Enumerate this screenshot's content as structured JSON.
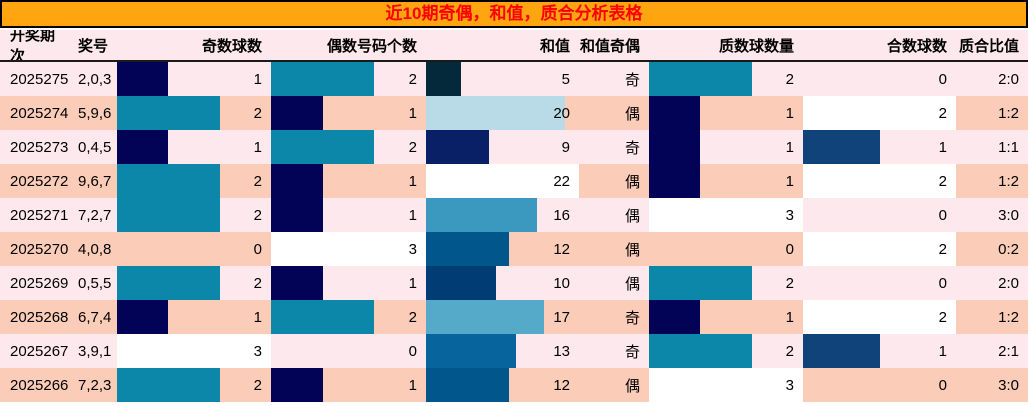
{
  "title": "近10期奇偶，和值，质合分析表格",
  "colors": {
    "title_bg": "#ffa510",
    "title_fg": "#fe0000",
    "row_light": "#fde9ed",
    "row_dark": "#fbccb8",
    "border": "#000000",
    "header_border": "#1a1a1a",
    "text": "#000000",
    "bar_navy": "#020257",
    "bar_teal": "#0d87a9",
    "bar_white": "#ffffff"
  },
  "chart_data": {
    "type": "table",
    "title": "近10期奇偶，和值，质合分析表格",
    "legend_note": "cells contain proportional data bars; count columns scale to max 3, sum column to max 22, composite column to max 2",
    "columns": [
      {
        "key": "period",
        "label": "开奖期次"
      },
      {
        "key": "numbers",
        "label": "奖号"
      },
      {
        "key": "odd",
        "label": "奇数球数"
      },
      {
        "key": "even",
        "label": "偶数号码个数"
      },
      {
        "key": "sum",
        "label": "和值"
      },
      {
        "key": "parity",
        "label": "和值奇偶"
      },
      {
        "key": "prime",
        "label": "质数球数量"
      },
      {
        "key": "composite",
        "label": "合数球数"
      },
      {
        "key": "ratio",
        "label": "质合比值"
      }
    ],
    "rows": [
      {
        "period": "2025275",
        "numbers": "2,0,3",
        "odd": {
          "value": 1,
          "bar": {
            "frac": 0.333,
            "color": "#020257"
          }
        },
        "even": {
          "value": 2,
          "bar": {
            "frac": 0.667,
            "color": "#0d87a9"
          }
        },
        "sum": {
          "value": 5,
          "bar": {
            "frac": 0.227,
            "color": "#04293a"
          }
        },
        "parity": "奇",
        "prime": {
          "value": 2,
          "bar": {
            "frac": 0.667,
            "color": "#0d87a9"
          }
        },
        "composite": {
          "value": 0,
          "bar": {
            "frac": 0,
            "color": null
          }
        },
        "ratio": "2:0"
      },
      {
        "period": "2025274",
        "numbers": "5,9,6",
        "odd": {
          "value": 2,
          "bar": {
            "frac": 0.667,
            "color": "#0d87a9"
          }
        },
        "even": {
          "value": 1,
          "bar": {
            "frac": 0.333,
            "color": "#020257"
          }
        },
        "sum": {
          "value": 20,
          "bar": {
            "frac": 0.909,
            "color": "#b9dbe7"
          }
        },
        "parity": "偶",
        "prime": {
          "value": 1,
          "bar": {
            "frac": 0.333,
            "color": "#020257"
          }
        },
        "composite": {
          "value": 2,
          "bar": {
            "frac": 1,
            "color": "#ffffff"
          }
        },
        "ratio": "1:2"
      },
      {
        "period": "2025273",
        "numbers": "0,4,5",
        "odd": {
          "value": 1,
          "bar": {
            "frac": 0.333,
            "color": "#020257"
          }
        },
        "even": {
          "value": 2,
          "bar": {
            "frac": 0.667,
            "color": "#0d87a9"
          }
        },
        "sum": {
          "value": 9,
          "bar": {
            "frac": 0.409,
            "color": "#0a2066"
          }
        },
        "parity": "奇",
        "prime": {
          "value": 1,
          "bar": {
            "frac": 0.333,
            "color": "#020257"
          }
        },
        "composite": {
          "value": 1,
          "bar": {
            "frac": 0.5,
            "color": "#11437b"
          }
        },
        "ratio": "1:1"
      },
      {
        "period": "2025272",
        "numbers": "9,6,7",
        "odd": {
          "value": 2,
          "bar": {
            "frac": 0.667,
            "color": "#0d87a9"
          }
        },
        "even": {
          "value": 1,
          "bar": {
            "frac": 0.333,
            "color": "#020257"
          }
        },
        "sum": {
          "value": 22,
          "bar": {
            "frac": 1,
            "color": "#ffffff"
          }
        },
        "parity": "偶",
        "prime": {
          "value": 1,
          "bar": {
            "frac": 0.333,
            "color": "#020257"
          }
        },
        "composite": {
          "value": 2,
          "bar": {
            "frac": 1,
            "color": "#ffffff"
          }
        },
        "ratio": "1:2"
      },
      {
        "period": "2025271",
        "numbers": "7,2,7",
        "odd": {
          "value": 2,
          "bar": {
            "frac": 0.667,
            "color": "#0d87a9"
          }
        },
        "even": {
          "value": 1,
          "bar": {
            "frac": 0.333,
            "color": "#020257"
          }
        },
        "sum": {
          "value": 16,
          "bar": {
            "frac": 0.727,
            "color": "#3b99c0"
          }
        },
        "parity": "偶",
        "prime": {
          "value": 3,
          "bar": {
            "frac": 1,
            "color": "#ffffff"
          }
        },
        "composite": {
          "value": 0,
          "bar": {
            "frac": 0,
            "color": null
          }
        },
        "ratio": "3:0"
      },
      {
        "period": "2025270",
        "numbers": "4,0,8",
        "odd": {
          "value": 0,
          "bar": {
            "frac": 0,
            "color": null
          }
        },
        "even": {
          "value": 3,
          "bar": {
            "frac": 1,
            "color": "#ffffff"
          }
        },
        "sum": {
          "value": 12,
          "bar": {
            "frac": 0.545,
            "color": "#01568c"
          }
        },
        "parity": "偶",
        "prime": {
          "value": 0,
          "bar": {
            "frac": 0,
            "color": null
          }
        },
        "composite": {
          "value": 2,
          "bar": {
            "frac": 1,
            "color": "#ffffff"
          }
        },
        "ratio": "0:2"
      },
      {
        "period": "2025269",
        "numbers": "0,5,5",
        "odd": {
          "value": 2,
          "bar": {
            "frac": 0.667,
            "color": "#0d87a9"
          }
        },
        "even": {
          "value": 1,
          "bar": {
            "frac": 0.333,
            "color": "#020257"
          }
        },
        "sum": {
          "value": 10,
          "bar": {
            "frac": 0.455,
            "color": "#013c74"
          }
        },
        "parity": "偶",
        "prime": {
          "value": 2,
          "bar": {
            "frac": 0.667,
            "color": "#0d87a9"
          }
        },
        "composite": {
          "value": 0,
          "bar": {
            "frac": 0,
            "color": null
          }
        },
        "ratio": "2:0"
      },
      {
        "period": "2025268",
        "numbers": "6,7,4",
        "odd": {
          "value": 1,
          "bar": {
            "frac": 0.333,
            "color": "#020257"
          }
        },
        "even": {
          "value": 2,
          "bar": {
            "frac": 0.667,
            "color": "#0d87a9"
          }
        },
        "sum": {
          "value": 17,
          "bar": {
            "frac": 0.773,
            "color": "#55aaca"
          }
        },
        "parity": "奇",
        "prime": {
          "value": 1,
          "bar": {
            "frac": 0.333,
            "color": "#020257"
          }
        },
        "composite": {
          "value": 2,
          "bar": {
            "frac": 1,
            "color": "#ffffff"
          }
        },
        "ratio": "1:2"
      },
      {
        "period": "2025267",
        "numbers": "3,9,1",
        "odd": {
          "value": 3,
          "bar": {
            "frac": 1,
            "color": "#ffffff"
          }
        },
        "even": {
          "value": 0,
          "bar": {
            "frac": 0,
            "color": null
          }
        },
        "sum": {
          "value": 13,
          "bar": {
            "frac": 0.591,
            "color": "#07649d"
          }
        },
        "parity": "奇",
        "prime": {
          "value": 2,
          "bar": {
            "frac": 0.667,
            "color": "#0d87a9"
          }
        },
        "composite": {
          "value": 1,
          "bar": {
            "frac": 0.5,
            "color": "#11437b"
          }
        },
        "ratio": "2:1"
      },
      {
        "period": "2025266",
        "numbers": "7,2,3",
        "odd": {
          "value": 2,
          "bar": {
            "frac": 0.667,
            "color": "#0d87a9"
          }
        },
        "even": {
          "value": 1,
          "bar": {
            "frac": 0.333,
            "color": "#020257"
          }
        },
        "sum": {
          "value": 12,
          "bar": {
            "frac": 0.545,
            "color": "#01568c"
          }
        },
        "parity": "偶",
        "prime": {
          "value": 3,
          "bar": {
            "frac": 1,
            "color": "#ffffff"
          }
        },
        "composite": {
          "value": 0,
          "bar": {
            "frac": 0,
            "color": null
          }
        },
        "ratio": "3:0"
      }
    ]
  }
}
